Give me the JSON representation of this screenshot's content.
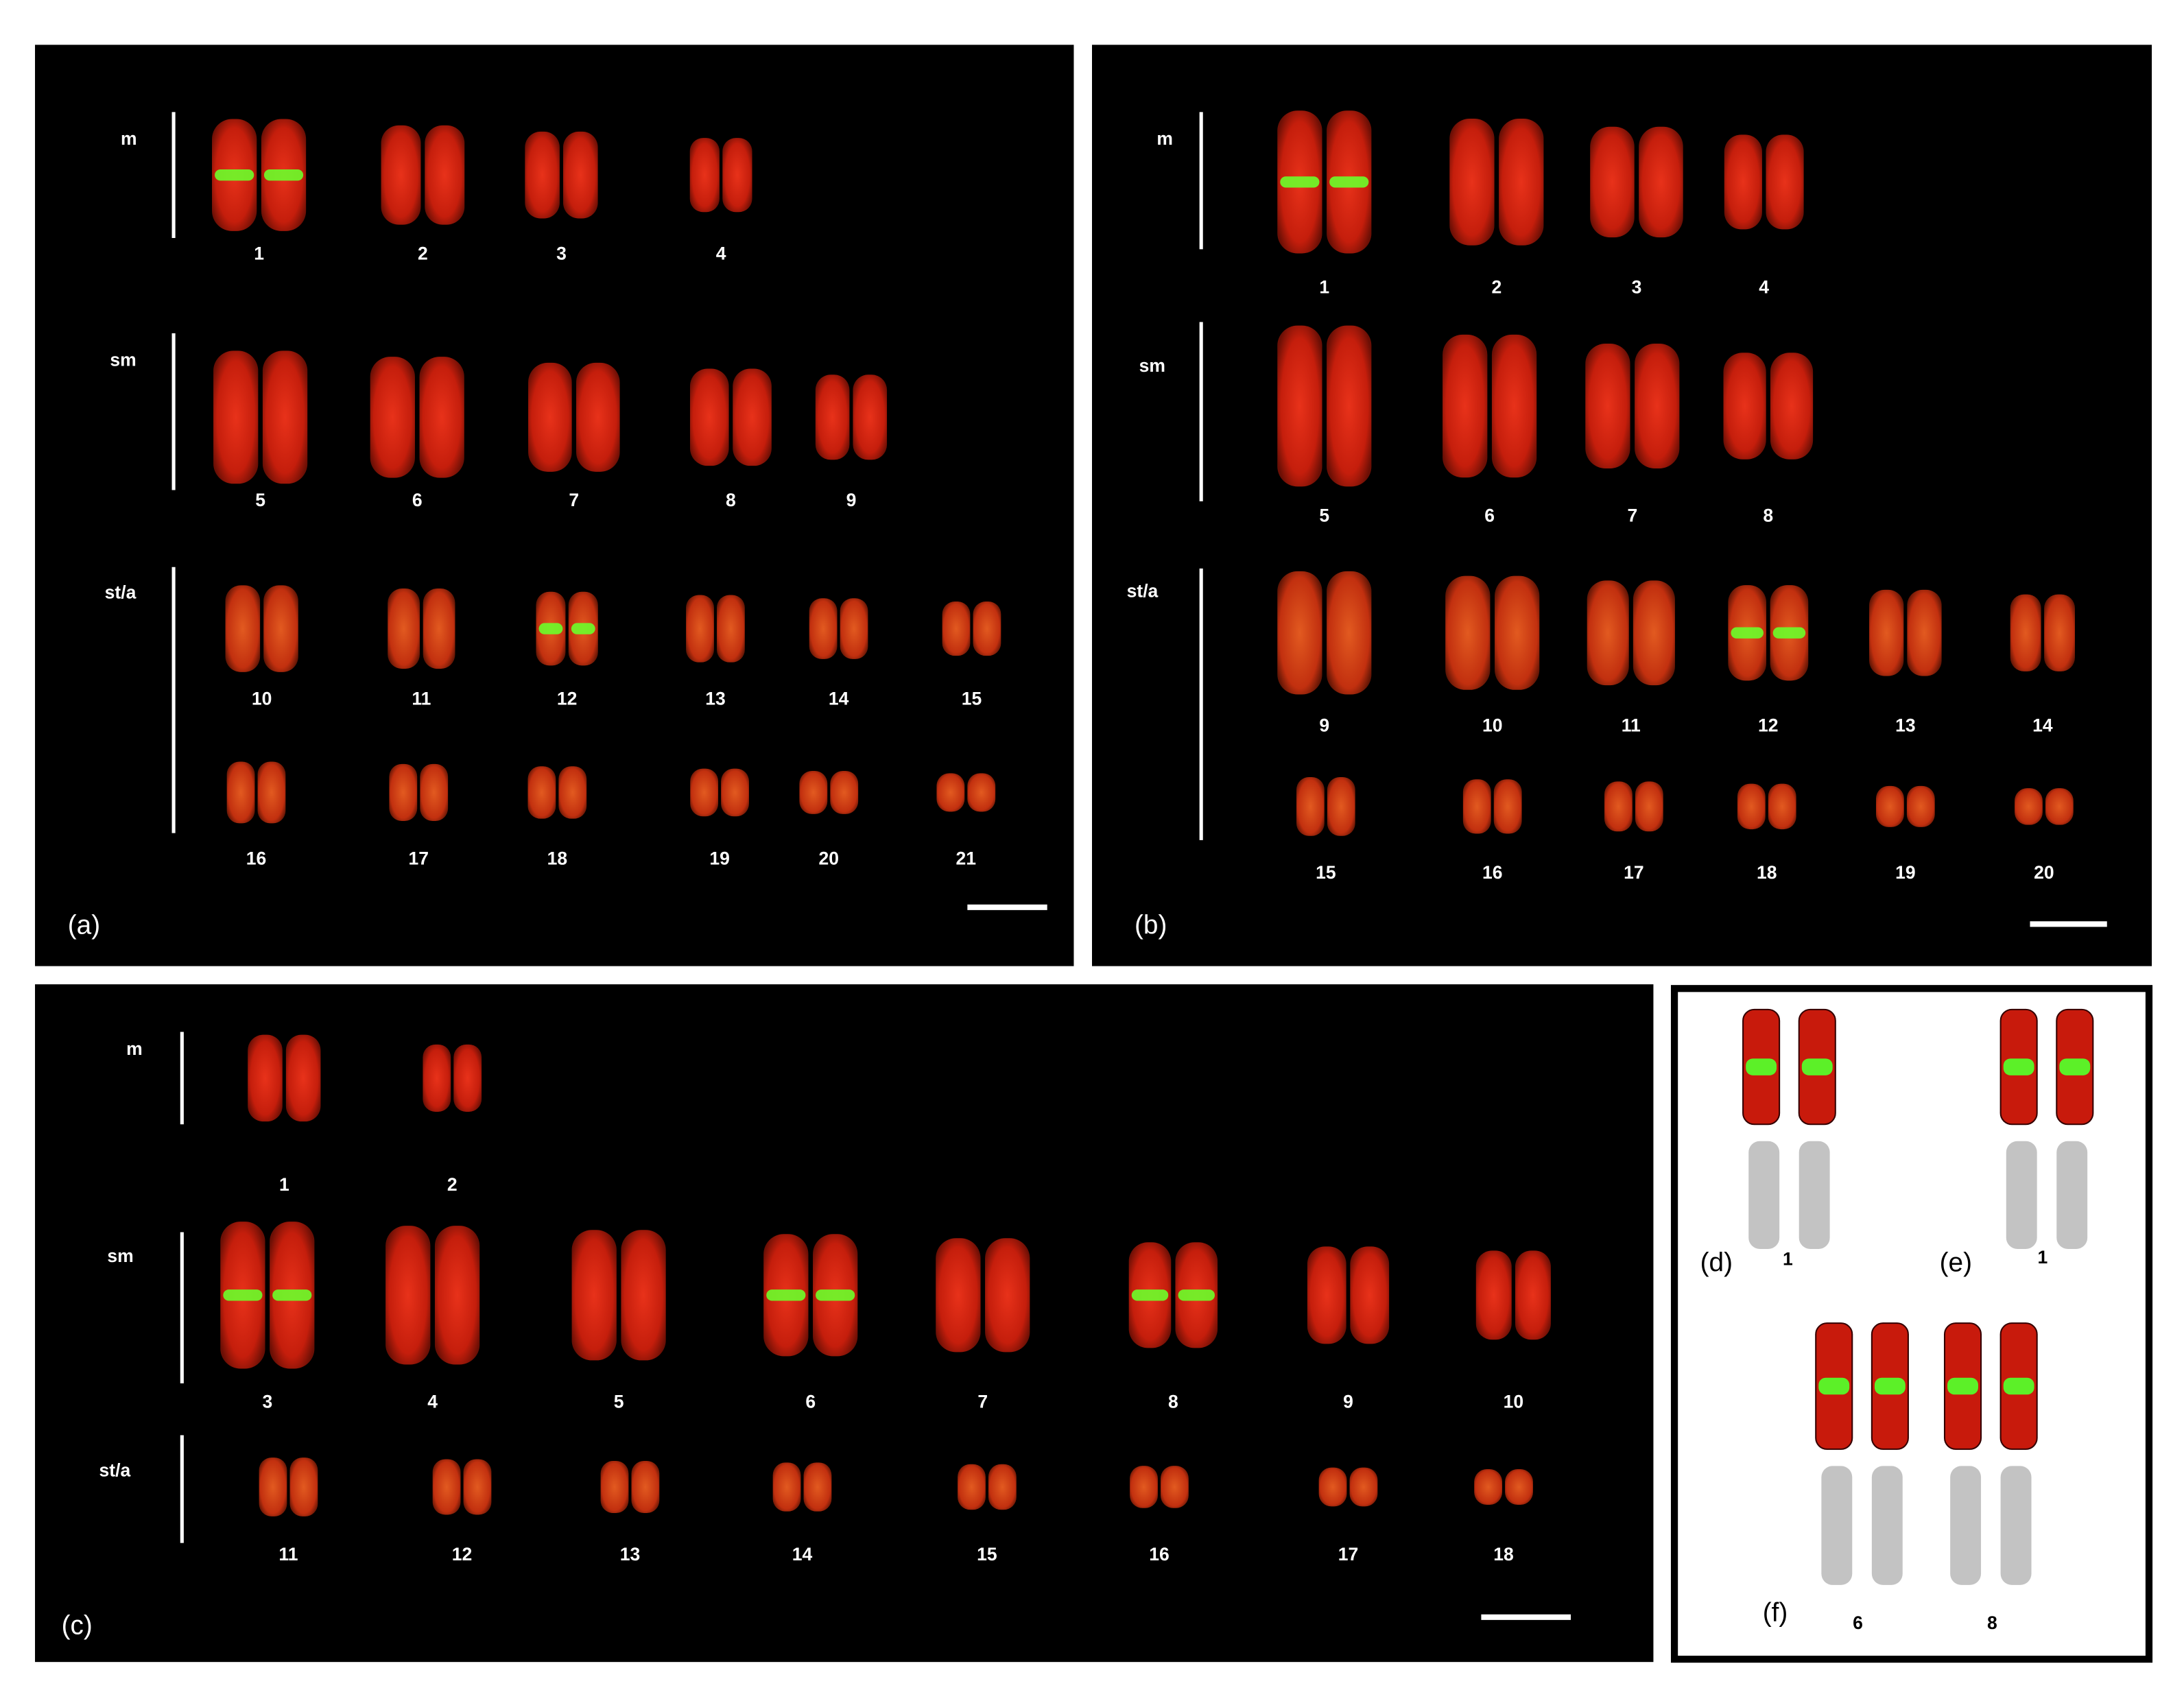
{
  "panels": [
    {
      "label": "(a)",
      "groups": [
        {
          "name": "m",
          "rows": [
            [
              "1",
              "2",
              "3",
              "4"
            ]
          ]
        },
        {
          "name": "sm",
          "rows": [
            [
              "5",
              "6",
              "7",
              "8",
              "9"
            ]
          ]
        },
        {
          "name": "st/a",
          "rows": [
            [
              "10",
              "11",
              "12",
              "13",
              "14",
              "15"
            ],
            [
              "16",
              "17",
              "18",
              "19",
              "20",
              "21"
            ]
          ]
        }
      ]
    },
    {
      "label": "(b)",
      "groups": [
        {
          "name": "m",
          "rows": [
            [
              "1",
              "2",
              "3",
              "4"
            ]
          ]
        },
        {
          "name": "sm",
          "rows": [
            [
              "5",
              "6",
              "7",
              "8"
            ]
          ]
        },
        {
          "name": "st/a",
          "rows": [
            [
              "9",
              "10",
              "11",
              "12",
              "13",
              "14"
            ],
            [
              "15",
              "16",
              "17",
              "18",
              "19",
              "20"
            ]
          ]
        }
      ]
    },
    {
      "label": "(c)",
      "groups": [
        {
          "name": "m",
          "rows": [
            [
              "1",
              "2"
            ]
          ]
        },
        {
          "name": "sm",
          "rows": [
            [
              "3",
              "4",
              "5",
              "6",
              "7",
              "8",
              "9",
              "10"
            ]
          ]
        },
        {
          "name": "st/a",
          "rows": [
            [
              "11",
              "12",
              "13",
              "14",
              "15",
              "16",
              "17",
              "18"
            ]
          ]
        }
      ]
    }
  ],
  "insets": [
    {
      "label": "(d)",
      "numbers": [
        "1"
      ]
    },
    {
      "label": "(e)",
      "numbers": [
        "1"
      ]
    },
    {
      "label": "(f)",
      "numbers": [
        "6",
        "8"
      ]
    }
  ]
}
